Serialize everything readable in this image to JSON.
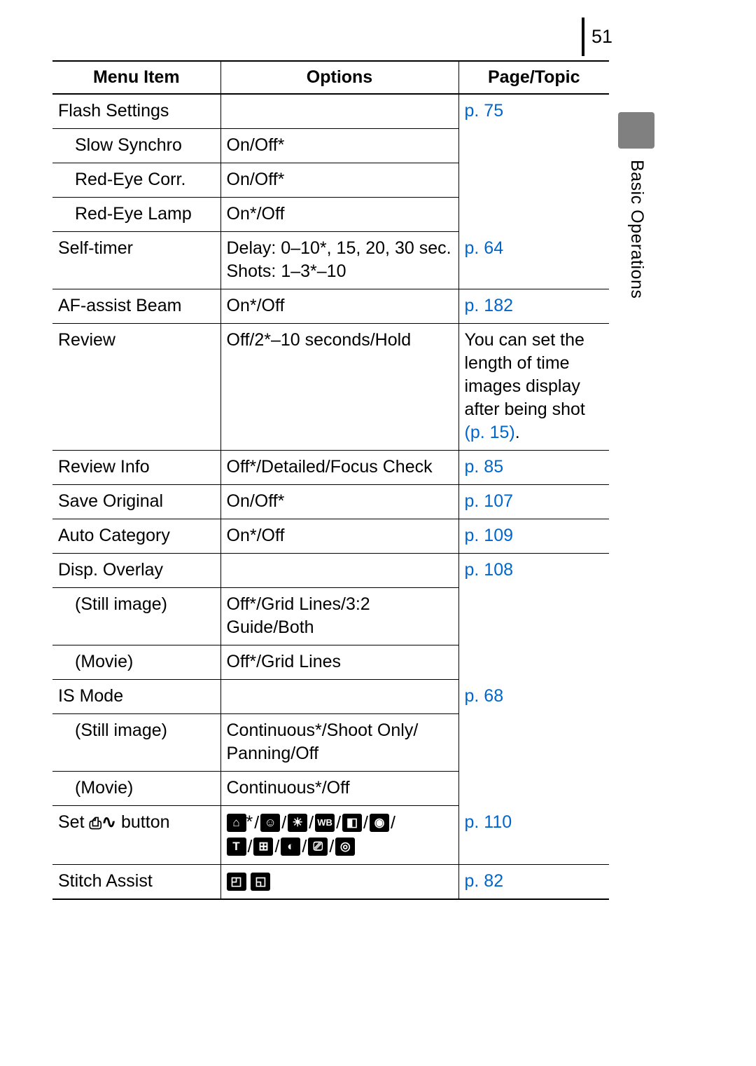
{
  "page_number": "51",
  "side_section_label": "Basic Operations",
  "link_color": "#0066cc",
  "text_color": "#000000",
  "background_color": "#ffffff",
  "tab_color": "#808080",
  "headers": {
    "menu_item": "Menu Item",
    "options": "Options",
    "page_topic": "Page/Topic"
  },
  "rows": {
    "flash_settings": {
      "menu": "Flash Settings",
      "options": "",
      "page": "p. 75"
    },
    "slow_synchro": {
      "menu": "Slow Synchro",
      "options": "On/Off*"
    },
    "red_eye_corr": {
      "menu": "Red-Eye Corr.",
      "options": "On/Off*"
    },
    "red_eye_lamp": {
      "menu": "Red-Eye Lamp",
      "options": "On*/Off"
    },
    "self_timer": {
      "menu": "Self-timer",
      "options": "Delay: 0–10*, 15, 20, 30 sec.\nShots: 1–3*–10",
      "page": "p. 64"
    },
    "af_assist": {
      "menu": "AF-assist Beam",
      "options": "On*/Off",
      "page": "p. 182"
    },
    "review": {
      "menu": "Review",
      "options": "Off/2*–10 seconds/Hold",
      "page_text": "You can set the length of time images display after being shot ",
      "page_link": "(p. 15)",
      "page_after": "."
    },
    "review_info": {
      "menu": "Review Info",
      "options": "Off*/Detailed/Focus Check",
      "page": "p. 85"
    },
    "save_original": {
      "menu": "Save Original",
      "options": "On/Off*",
      "page": "p. 107"
    },
    "auto_category": {
      "menu": "Auto Category",
      "options": "On*/Off",
      "page": "p. 109"
    },
    "disp_overlay": {
      "menu": "Disp. Overlay",
      "options": "",
      "page": "p. 108"
    },
    "disp_still": {
      "menu": "(Still image)",
      "options": "Off*/Grid Lines/3:2 Guide/Both"
    },
    "disp_movie": {
      "menu": "(Movie)",
      "options": "Off*/Grid Lines"
    },
    "is_mode": {
      "menu": "IS Mode",
      "options": "",
      "page": "p. 68"
    },
    "is_still": {
      "menu": "(Still image)",
      "options": "Continuous*/Shoot Only/\nPanning/Off"
    },
    "is_movie": {
      "menu": "(Movie)",
      "options": "Continuous*/Off"
    },
    "set_button": {
      "menu_pre": "Set ",
      "menu_post": " button",
      "page": "p. 110"
    },
    "stitch_assist": {
      "menu": "Stitch Assist",
      "page": "p. 82"
    }
  },
  "icons": {
    "print": "⎙",
    "wave": "∿",
    "row1": [
      "⌂",
      "☺",
      "☀",
      "WB",
      "◧",
      "◉"
    ],
    "row2": [
      "T",
      "⊞",
      "◐",
      "⎚",
      "◎"
    ],
    "stitch": [
      "◰",
      "◱"
    ],
    "star": "*",
    "slash": "/"
  }
}
